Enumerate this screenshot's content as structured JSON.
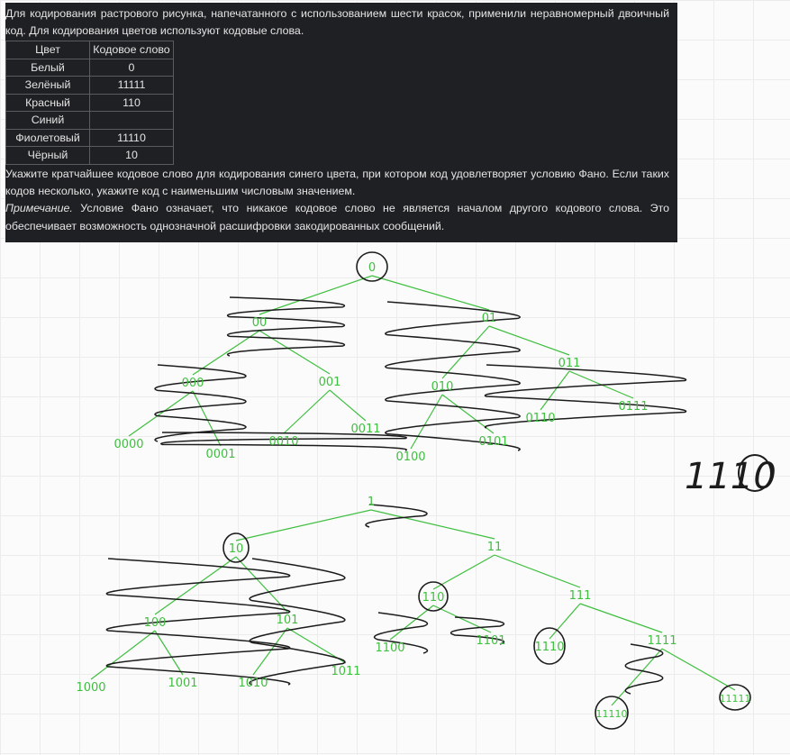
{
  "task": {
    "intro": "Для кодирования растрового рисунка, напечатанного с использованием шести красок, применили неравномерный двоичный код. Для кодирования цветов используют кодовые слова.",
    "table": {
      "headers": [
        "Цвет",
        "Кодовое слово"
      ],
      "rows": [
        {
          "color": "Белый",
          "code": "0"
        },
        {
          "color": "Зелёный",
          "code": "11111"
        },
        {
          "color": "Красный",
          "code": "110"
        },
        {
          "color": "Синий",
          "code": ""
        },
        {
          "color": "Фиолетовый",
          "code": "11110"
        },
        {
          "color": "Чёрный",
          "code": "10"
        }
      ]
    },
    "question": "Укажите кратчайшее кодовое слово для кодирования синего цвета, при котором код удовлетворяет условию Фано. Если таких кодов несколько, укажите код с наименьшим числовым значением.",
    "note_label": "Примечание.",
    "note_text": " Условие Фано означает, что никакое кодовое слово не является началом другого кодового слова. Это обеспечивает возможность однозначной расшифровки закодированных сообщений."
  },
  "sketch": {
    "answer": "1110",
    "colors": {
      "tree": "#3fbf3f",
      "pen": "#1c1c1c"
    },
    "tree1_labels": [
      "0",
      "00",
      "01",
      "000",
      "001",
      "010",
      "011",
      "0000",
      "0001",
      "0010",
      "0011",
      "0100",
      "0101",
      "0110",
      "0111"
    ],
    "tree2_labels": [
      "1",
      "10",
      "11",
      "100",
      "101",
      "110",
      "111",
      "1000",
      "1001",
      "1010",
      "1011",
      "1100",
      "1101",
      "1110",
      "1111",
      "11110",
      "11111"
    ]
  }
}
